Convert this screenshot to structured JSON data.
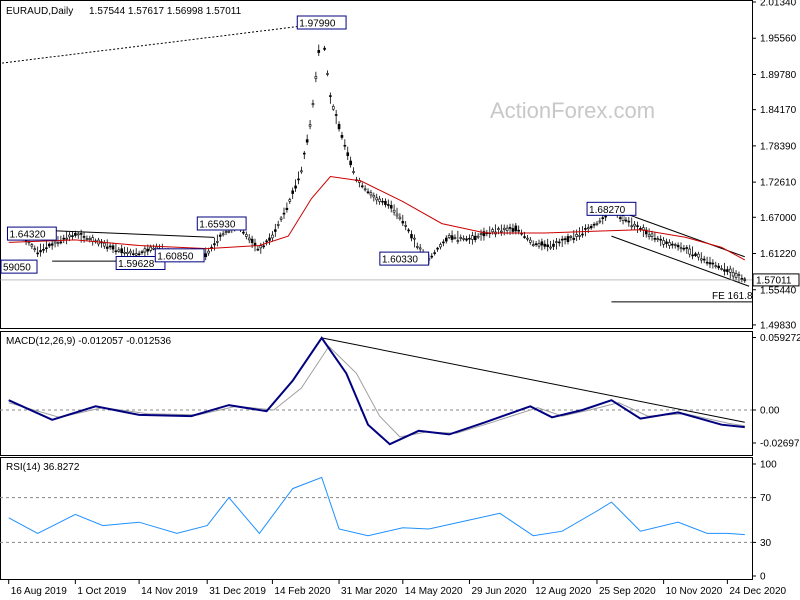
{
  "chart_data": [
    {
      "type": "candlestick",
      "title": "EURAUD,Daily",
      "ohlc_header": "1.57544 1.57617 1.56998 1.57011",
      "watermark": "ActionForex.com",
      "ylim": [
        1.4934,
        2.0134
      ],
      "y_ticks": [
        "2.01340",
        "1.95560",
        "1.89780",
        "1.84170",
        "1.78390",
        "1.72610",
        "1.67000",
        "1.61220",
        "1.55440",
        "1.49830"
      ],
      "y_tick_values": [
        2.0134,
        1.9556,
        1.8978,
        1.8417,
        1.7839,
        1.7261,
        1.67,
        1.6122,
        1.5544,
        1.4983
      ],
      "last_price": "1.57011",
      "last_price_value": 1.57011,
      "close_series": [
        {
          "date": "2019-08-16",
          "value": 1.64
        },
        {
          "date": "2019-08-23",
          "value": 1.645
        },
        {
          "date": "2019-09-05",
          "value": 1.615
        },
        {
          "date": "2019-09-15",
          "value": 1.628
        },
        {
          "date": "2019-10-01",
          "value": 1.643
        },
        {
          "date": "2019-10-15",
          "value": 1.632
        },
        {
          "date": "2019-11-01",
          "value": 1.617
        },
        {
          "date": "2019-11-14",
          "value": 1.612
        },
        {
          "date": "2019-11-25",
          "value": 1.623
        },
        {
          "date": "2019-12-10",
          "value": 1.608
        },
        {
          "date": "2019-12-31",
          "value": 1.612
        },
        {
          "date": "2020-01-10",
          "value": 1.642
        },
        {
          "date": "2020-01-20",
          "value": 1.659
        },
        {
          "date": "2020-02-05",
          "value": 1.618
        },
        {
          "date": "2020-02-14",
          "value": 1.64
        },
        {
          "date": "2020-02-25",
          "value": 1.69
        },
        {
          "date": "2020-03-05",
          "value": 1.745
        },
        {
          "date": "2020-03-12",
          "value": 1.83
        },
        {
          "date": "2020-03-19",
          "value": 1.979
        },
        {
          "date": "2020-03-25",
          "value": 1.86
        },
        {
          "date": "2020-04-02",
          "value": 1.8
        },
        {
          "date": "2020-04-12",
          "value": 1.73
        },
        {
          "date": "2020-04-25",
          "value": 1.7
        },
        {
          "date": "2020-05-05",
          "value": 1.69
        },
        {
          "date": "2020-05-14",
          "value": 1.665
        },
        {
          "date": "2020-05-25",
          "value": 1.62
        },
        {
          "date": "2020-06-01",
          "value": 1.603
        },
        {
          "date": "2020-06-15",
          "value": 1.64
        },
        {
          "date": "2020-06-29",
          "value": 1.635
        },
        {
          "date": "2020-07-15",
          "value": 1.648
        },
        {
          "date": "2020-08-01",
          "value": 1.652
        },
        {
          "date": "2020-08-12",
          "value": 1.628
        },
        {
          "date": "2020-08-25",
          "value": 1.625
        },
        {
          "date": "2020-09-10",
          "value": 1.64
        },
        {
          "date": "2020-09-25",
          "value": 1.66
        },
        {
          "date": "2020-10-05",
          "value": 1.682
        },
        {
          "date": "2020-10-20",
          "value": 1.658
        },
        {
          "date": "2020-11-10",
          "value": 1.63
        },
        {
          "date": "2020-11-25",
          "value": 1.62
        },
        {
          "date": "2020-12-10",
          "value": 1.6
        },
        {
          "date": "2020-12-24",
          "value": 1.585
        },
        {
          "date": "2021-01-05",
          "value": 1.57
        }
      ],
      "moving_average": {
        "color": "#cc0000",
        "points": [
          {
            "date": "2019-08-16",
            "value": 1.63
          },
          {
            "date": "2019-10-01",
            "value": 1.634
          },
          {
            "date": "2019-11-14",
            "value": 1.625
          },
          {
            "date": "2019-12-31",
            "value": 1.62
          },
          {
            "date": "2020-02-05",
            "value": 1.625
          },
          {
            "date": "2020-02-25",
            "value": 1.64
          },
          {
            "date": "2020-03-12",
            "value": 1.7
          },
          {
            "date": "2020-03-25",
            "value": 1.735
          },
          {
            "date": "2020-04-15",
            "value": 1.728
          },
          {
            "date": "2020-05-14",
            "value": 1.695
          },
          {
            "date": "2020-06-10",
            "value": 1.66
          },
          {
            "date": "2020-07-10",
            "value": 1.645
          },
          {
            "date": "2020-08-20",
            "value": 1.645
          },
          {
            "date": "2020-09-25",
            "value": 1.648
          },
          {
            "date": "2020-10-25",
            "value": 1.65
          },
          {
            "date": "2020-11-25",
            "value": 1.638
          },
          {
            "date": "2020-12-20",
            "value": 1.622
          },
          {
            "date": "2021-01-05",
            "value": 1.602
          }
        ]
      },
      "annotations": [
        {
          "label": "1.64320",
          "date": "2019-09-01",
          "value": 1.6432
        },
        {
          "label": "1.59628",
          "date": "2019-11-15",
          "value": 1.5963
        },
        {
          "label": "1.60850",
          "date": "2019-12-12",
          "value": 1.6085
        },
        {
          "label": "1.65930",
          "date": "2020-01-10",
          "value": 1.6593
        },
        {
          "label": "1.97990",
          "date": "2020-03-19",
          "value": 1.9799
        },
        {
          "label": "1.60330",
          "date": "2020-05-15",
          "value": 1.6033
        },
        {
          "label": "1.68270",
          "date": "2020-10-05",
          "value": 1.6827
        },
        {
          "label": "59050",
          "date": "2019-08-16",
          "value": 1.5905
        }
      ],
      "fe_label": "FE 161.8",
      "fe_value": 1.535
    },
    {
      "type": "line",
      "title": "MACD(12,26,9) -0.012057 -0.012536",
      "ylim": [
        -0.036,
        0.063
      ],
      "y_ticks": [
        "0.059272",
        "0.00",
        "-0.026978"
      ],
      "y_tick_values": [
        0.059272,
        0.0,
        -0.026978
      ],
      "series": [
        {
          "color": "#000080",
          "points": [
            {
              "date": "2019-08-16",
              "value": 0.008
            },
            {
              "date": "2019-09-15",
              "value": -0.008
            },
            {
              "date": "2019-10-15",
              "value": 0.003
            },
            {
              "date": "2019-11-14",
              "value": -0.004
            },
            {
              "date": "2019-12-20",
              "value": -0.005
            },
            {
              "date": "2020-01-15",
              "value": 0.004
            },
            {
              "date": "2020-02-10",
              "value": -0.001
            },
            {
              "date": "2020-02-28",
              "value": 0.024
            },
            {
              "date": "2020-03-19",
              "value": 0.059
            },
            {
              "date": "2020-04-05",
              "value": 0.03
            },
            {
              "date": "2020-04-20",
              "value": -0.012
            },
            {
              "date": "2020-05-05",
              "value": -0.028
            },
            {
              "date": "2020-05-25",
              "value": -0.017
            },
            {
              "date": "2020-06-15",
              "value": -0.02
            },
            {
              "date": "2020-07-10",
              "value": -0.01
            },
            {
              "date": "2020-08-10",
              "value": 0.003
            },
            {
              "date": "2020-08-25",
              "value": -0.006
            },
            {
              "date": "2020-09-15",
              "value": 0.0
            },
            {
              "date": "2020-10-05",
              "value": 0.008
            },
            {
              "date": "2020-10-25",
              "value": -0.007
            },
            {
              "date": "2020-11-20",
              "value": -0.002
            },
            {
              "date": "2020-12-20",
              "value": -0.012
            },
            {
              "date": "2021-01-05",
              "value": -0.014
            }
          ]
        },
        {
          "color": "#a0a0a0",
          "points": [
            {
              "date": "2019-08-16",
              "value": 0.006
            },
            {
              "date": "2019-09-20",
              "value": -0.006
            },
            {
              "date": "2019-10-20",
              "value": 0.002
            },
            {
              "date": "2019-11-20",
              "value": -0.003
            },
            {
              "date": "2019-12-25",
              "value": -0.004
            },
            {
              "date": "2020-01-20",
              "value": 0.003
            },
            {
              "date": "2020-02-15",
              "value": 0.0
            },
            {
              "date": "2020-03-05",
              "value": 0.018
            },
            {
              "date": "2020-03-24",
              "value": 0.052
            },
            {
              "date": "2020-04-12",
              "value": 0.03
            },
            {
              "date": "2020-04-28",
              "value": -0.005
            },
            {
              "date": "2020-05-12",
              "value": -0.022
            },
            {
              "date": "2020-05-30",
              "value": -0.018
            },
            {
              "date": "2020-06-20",
              "value": -0.019
            },
            {
              "date": "2020-07-15",
              "value": -0.01
            },
            {
              "date": "2020-08-15",
              "value": 0.002
            },
            {
              "date": "2020-09-01",
              "value": -0.005
            },
            {
              "date": "2020-09-20",
              "value": 0.0
            },
            {
              "date": "2020-10-10",
              "value": 0.006
            },
            {
              "date": "2020-10-30",
              "value": -0.005
            },
            {
              "date": "2020-11-25",
              "value": -0.003
            },
            {
              "date": "2020-12-25",
              "value": -0.011
            },
            {
              "date": "2021-01-05",
              "value": -0.013
            }
          ]
        }
      ]
    },
    {
      "type": "line",
      "title": "RSI(14) 36.8272",
      "ylim": [
        0,
        100
      ],
      "y_ticks": [
        "100",
        "70",
        "30",
        "0"
      ],
      "y_tick_values": [
        100,
        70,
        30,
        0
      ],
      "levels": [
        70,
        30
      ],
      "series": [
        {
          "color": "#1e90ff",
          "points": [
            {
              "date": "2019-08-16",
              "value": 52
            },
            {
              "date": "2019-09-05",
              "value": 38
            },
            {
              "date": "2019-10-01",
              "value": 55
            },
            {
              "date": "2019-10-20",
              "value": 45
            },
            {
              "date": "2019-11-14",
              "value": 48
            },
            {
              "date": "2019-12-10",
              "value": 38
            },
            {
              "date": "2019-12-31",
              "value": 45
            },
            {
              "date": "2020-01-15",
              "value": 70
            },
            {
              "date": "2020-02-05",
              "value": 38
            },
            {
              "date": "2020-02-28",
              "value": 78
            },
            {
              "date": "2020-03-19",
              "value": 88
            },
            {
              "date": "2020-03-31",
              "value": 42
            },
            {
              "date": "2020-04-20",
              "value": 36
            },
            {
              "date": "2020-05-14",
              "value": 43
            },
            {
              "date": "2020-06-01",
              "value": 42
            },
            {
              "date": "2020-06-29",
              "value": 50
            },
            {
              "date": "2020-07-20",
              "value": 56
            },
            {
              "date": "2020-08-12",
              "value": 36
            },
            {
              "date": "2020-09-01",
              "value": 40
            },
            {
              "date": "2020-09-25",
              "value": 58
            },
            {
              "date": "2020-10-05",
              "value": 66
            },
            {
              "date": "2020-10-25",
              "value": 40
            },
            {
              "date": "2020-11-20",
              "value": 48
            },
            {
              "date": "2020-12-10",
              "value": 38
            },
            {
              "date": "2020-12-24",
              "value": 38
            },
            {
              "date": "2021-01-05",
              "value": 37
            }
          ]
        }
      ]
    }
  ],
  "x_axis": {
    "ticks": [
      "16 Aug 2019",
      "1 Oct 2019",
      "14 Nov 2019",
      "31 Dec 2019",
      "14 Feb 2020",
      "31 Mar 2020",
      "14 May 2020",
      "29 Jun 2020",
      "12 Aug 2020",
      "25 Sep 2020",
      "10 Nov 2020",
      "24 Dec 2020"
    ],
    "tick_dates": [
      "2019-08-16",
      "2019-10-01",
      "2019-11-14",
      "2019-12-31",
      "2020-02-14",
      "2020-03-31",
      "2020-05-14",
      "2020-06-29",
      "2020-08-12",
      "2020-09-25",
      "2020-11-10",
      "2020-12-24"
    ]
  }
}
